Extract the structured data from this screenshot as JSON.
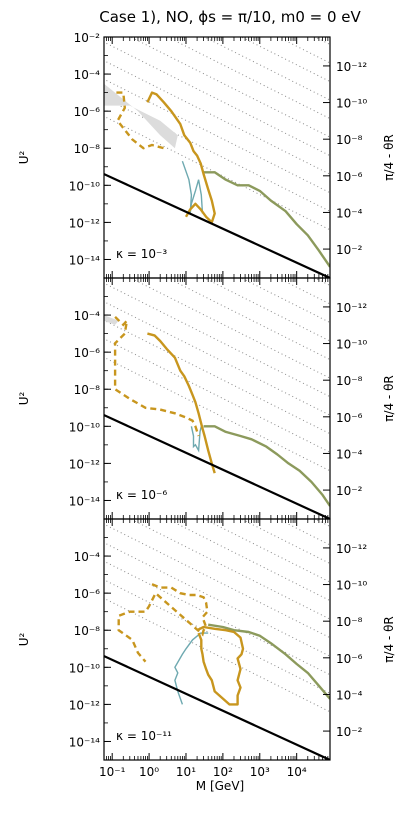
{
  "figure": {
    "title": "Case 1), NO, ϕs = π/10, m0 = 0 eV",
    "xlabel": "M [GeV]",
    "ylabel": "U²",
    "ylabel_right": "π/4 - θR"
  },
  "chart_data": [
    {
      "type": "line",
      "panel": "top",
      "annotation": "κ = 10⁻³",
      "xscale": "log",
      "yscale": "log",
      "xlim": [
        0.06,
        80000
      ],
      "ylim": [
        1e-15,
        0.01
      ],
      "x_ticks": [
        "10⁻¹",
        "10⁰",
        "10¹",
        "10²",
        "10³",
        "10⁴"
      ],
      "y_ticks": [
        "10⁻²",
        "10⁻⁴",
        "10⁻⁶",
        "10⁻⁸",
        "10⁻¹⁰",
        "10⁻¹²",
        "10⁻¹⁴"
      ],
      "y_ticks_right": [
        "10⁻¹²",
        "10⁻¹⁰",
        "10⁻⁸",
        "10⁻⁶",
        "10⁻⁴",
        "10⁻²"
      ],
      "colors": {
        "gold": "#c8961e",
        "teal": "#6ea9b0",
        "olive": "#8c9a5c",
        "shade": "#dcdcdc",
        "seesaw": "#000000"
      },
      "series": [
        {
          "style": "seesaw",
          "points": [
            [
              0.06,
              4e-10
            ],
            [
              80000,
              1e-15
            ]
          ]
        },
        {
          "style": "gold-solid",
          "points": [
            [
              0.9,
              3e-06
            ],
            [
              1.2,
              1e-05
            ],
            [
              1.6,
              8e-06
            ],
            [
              2.5,
              3e-06
            ],
            [
              4,
              1e-06
            ],
            [
              7,
              2e-07
            ],
            [
              9,
              5e-08
            ],
            [
              13,
              2e-08
            ],
            [
              16,
              7e-09
            ],
            [
              20,
              4e-09
            ],
            [
              25,
              1.5e-09
            ],
            [
              30,
              4e-10
            ],
            [
              40,
              6e-11
            ],
            [
              50,
              1.5e-11
            ],
            [
              60,
              3e-12
            ],
            [
              50,
              1e-12
            ],
            [
              35,
              2e-12
            ],
            [
              25,
              5e-12
            ],
            [
              18,
              1e-11
            ],
            [
              13,
              5e-12
            ],
            [
              10,
              2e-12
            ]
          ]
        },
        {
          "style": "gold-dashed",
          "points": [
            [
              0.13,
              1e-05
            ],
            [
              0.2,
              1e-05
            ],
            [
              0.22,
              1.5e-06
            ],
            [
              0.14,
              3e-07
            ],
            [
              0.35,
              3e-08
            ],
            [
              0.7,
              1e-08
            ],
            [
              1.2,
              1.5e-08
            ],
            [
              2.5,
              1e-08
            ]
          ]
        },
        {
          "style": "teal",
          "points": [
            [
              8,
              2e-09
            ],
            [
              12,
              2e-10
            ],
            [
              14,
              3e-11
            ],
            [
              13,
              3e-12
            ],
            [
              14,
              1e-11
            ],
            [
              18,
              5e-11
            ],
            [
              22,
              2e-10
            ],
            [
              26,
              3e-11
            ],
            [
              28,
              3e-12
            ]
          ]
        },
        {
          "style": "olive",
          "points": [
            [
              30,
              5e-10
            ],
            [
              60,
              5e-10
            ],
            [
              120,
              2e-10
            ],
            [
              250,
              1e-10
            ],
            [
              500,
              1e-10
            ],
            [
              1000,
              5e-11
            ],
            [
              2000,
              1.5e-11
            ],
            [
              5000,
              4e-12
            ],
            [
              10000,
              8e-13
            ],
            [
              20000,
              2e-13
            ],
            [
              40000,
              3e-14
            ],
            [
              80000,
              4e-15
            ]
          ]
        },
        {
          "style": "shade",
          "points": [
            [
              0.06,
              3e-05
            ],
            [
              0.5,
              1e-06
            ],
            [
              2,
              5e-08
            ],
            [
              5,
              1e-08
            ],
            [
              6,
              5e-08
            ],
            [
              2,
              3e-07
            ],
            [
              0.3,
              2e-06
            ],
            [
              0.06,
              2e-06
            ]
          ]
        }
      ]
    },
    {
      "type": "line",
      "panel": "middle",
      "annotation": "κ = 10⁻⁶",
      "xscale": "log",
      "yscale": "log",
      "xlim": [
        0.06,
        80000
      ],
      "ylim": [
        1e-15,
        0.01
      ],
      "x_ticks": [
        "10⁻¹",
        "10⁰",
        "10¹",
        "10²",
        "10³",
        "10⁴"
      ],
      "y_ticks": [
        "10⁻²",
        "10⁻⁴",
        "10⁻⁶",
        "10⁻⁸",
        "10⁻¹⁰",
        "10⁻¹²",
        "10⁻¹⁴"
      ],
      "y_ticks_right": [
        "10⁻¹²",
        "10⁻¹⁰",
        "10⁻⁸",
        "10⁻⁶",
        "10⁻⁴",
        "10⁻²"
      ],
      "colors": {
        "gold": "#c8961e",
        "teal": "#6ea9b0",
        "olive": "#8c9a5c",
        "shade": "#dcdcdc",
        "seesaw": "#000000"
      },
      "series": [
        {
          "style": "seesaw",
          "points": [
            [
              0.06,
              4e-10
            ],
            [
              80000,
              1e-15
            ]
          ]
        },
        {
          "style": "gold-solid",
          "points": [
            [
              0.9,
              1e-05
            ],
            [
              1.4,
              8e-06
            ],
            [
              2,
              4e-06
            ],
            [
              3,
              1.5e-06
            ],
            [
              5,
              5e-07
            ],
            [
              7,
              1e-07
            ],
            [
              9,
              5e-08
            ],
            [
              12,
              1.5e-08
            ],
            [
              15,
              5e-09
            ],
            [
              18,
              2e-09
            ],
            [
              22,
              5e-10
            ],
            [
              27,
              1e-10
            ],
            [
              32,
              3e-11
            ],
            [
              40,
              5e-12
            ],
            [
              50,
              1e-12
            ],
            [
              60,
              3e-13
            ]
          ]
        },
        {
          "style": "gold-dashed",
          "points": [
            [
              0.12,
              8e-05
            ],
            [
              0.2,
              3e-05
            ],
            [
              0.25,
              5e-05
            ],
            [
              0.22,
              1e-05
            ],
            [
              0.12,
              3e-06
            ],
            [
              0.12,
              1e-08
            ],
            [
              0.3,
              3e-09
            ],
            [
              0.8,
              1e-09
            ],
            [
              2,
              8e-10
            ],
            [
              5,
              5e-10
            ],
            [
              10,
              3e-10
            ],
            [
              15,
              2e-10
            ],
            [
              18,
              1e-10
            ],
            [
              22,
              3e-11
            ]
          ]
        },
        {
          "style": "teal",
          "points": [
            [
              14,
              1e-10
            ],
            [
              16,
              3e-11
            ],
            [
              16,
              8e-12
            ],
            [
              18,
              1e-11
            ],
            [
              22,
              5e-12
            ],
            [
              24,
              5e-11
            ],
            [
              26,
              1e-10
            ]
          ]
        },
        {
          "style": "olive",
          "points": [
            [
              30,
              1e-10
            ],
            [
              60,
              1e-10
            ],
            [
              120,
              5e-11
            ],
            [
              300,
              3e-11
            ],
            [
              600,
              2e-11
            ],
            [
              1500,
              8e-12
            ],
            [
              3000,
              3e-12
            ],
            [
              6000,
              1e-12
            ],
            [
              12000,
              4e-13
            ],
            [
              25000,
              1e-13
            ],
            [
              50000,
              2e-14
            ],
            [
              80000,
              5e-15
            ]
          ]
        },
        {
          "style": "shade",
          "points": [
            [
              0.06,
              0.0001
            ],
            [
              0.15,
              5e-05
            ],
            [
              0.12,
              3e-05
            ],
            [
              0.06,
              5e-05
            ]
          ]
        }
      ]
    },
    {
      "type": "line",
      "panel": "bottom",
      "annotation": "κ = 10⁻¹¹",
      "xscale": "log",
      "yscale": "log",
      "xlim": [
        0.06,
        80000
      ],
      "ylim": [
        1e-15,
        0.01
      ],
      "x_ticks": [
        "10⁻¹",
        "10⁰",
        "10¹",
        "10²",
        "10³",
        "10⁴"
      ],
      "y_ticks": [
        "10⁻²",
        "10⁻⁴",
        "10⁻⁶",
        "10⁻⁸",
        "10⁻¹⁰",
        "10⁻¹²",
        "10⁻¹⁴"
      ],
      "y_ticks_right": [
        "10⁻¹²",
        "10⁻¹⁰",
        "10⁻⁸",
        "10⁻⁶",
        "10⁻⁴",
        "10⁻²"
      ],
      "colors": {
        "gold": "#c8961e",
        "teal": "#6ea9b0",
        "olive": "#8c9a5c",
        "shade": "#dcdcdc",
        "seesaw": "#000000"
      },
      "series": [
        {
          "style": "seesaw",
          "points": [
            [
              0.06,
              4e-10
            ],
            [
              80000,
              1e-15
            ]
          ]
        },
        {
          "style": "gold-solid",
          "points": [
            [
              20,
              1e-08
            ],
            [
              30,
              1.5e-08
            ],
            [
              60,
              1.2e-08
            ],
            [
              120,
              1e-08
            ],
            [
              200,
              8e-09
            ],
            [
              300,
              4e-09
            ],
            [
              350,
              1e-09
            ],
            [
              320,
              5e-10
            ],
            [
              250,
              3e-10
            ],
            [
              300,
              8e-11
            ],
            [
              250,
              2e-11
            ],
            [
              300,
              8e-12
            ],
            [
              250,
              3e-12
            ],
            [
              250,
              1e-12
            ],
            [
              150,
              1e-12
            ],
            [
              60,
              5e-12
            ],
            [
              50,
              2e-11
            ],
            [
              40,
              4e-11
            ],
            [
              35,
              8e-11
            ],
            [
              30,
              2e-10
            ],
            [
              28,
              5e-10
            ],
            [
              26,
              1e-09
            ],
            [
              26,
              3e-09
            ],
            [
              22,
              7e-09
            ]
          ]
        },
        {
          "style": "gold-dashed",
          "points": [
            [
              1.2,
              3e-06
            ],
            [
              2,
              2e-06
            ],
            [
              4,
              2e-06
            ],
            [
              7,
              1e-06
            ],
            [
              12,
              8e-07
            ],
            [
              20,
              8e-07
            ],
            [
              30,
              6e-07
            ],
            [
              35,
              3e-07
            ],
            [
              38,
              1e-07
            ],
            [
              28,
              5e-08
            ],
            [
              35,
              1.5e-08
            ],
            [
              30,
              1e-08
            ],
            [
              28,
              6e-09
            ],
            [
              1.5,
              1e-06
            ],
            [
              1,
              2e-07
            ],
            [
              0.8,
              1e-07
            ],
            [
              0.3,
              1e-07
            ],
            [
              0.15,
              6e-08
            ],
            [
              0.15,
              1e-08
            ],
            [
              0.35,
              3e-09
            ],
            [
              0.5,
              6e-10
            ],
            [
              0.8,
              2e-10
            ]
          ]
        },
        {
          "style": "teal",
          "points": [
            [
              40,
              7e-09
            ],
            [
              25,
              7e-09
            ],
            [
              15,
              3e-09
            ],
            [
              10,
              1e-09
            ],
            [
              8,
              5e-10
            ],
            [
              5,
              1e-10
            ],
            [
              6,
              5e-11
            ],
            [
              5,
              2e-11
            ],
            [
              6,
              5e-12
            ],
            [
              8,
              1e-12
            ]
          ]
        },
        {
          "style": "olive",
          "points": [
            [
              40,
              2e-08
            ],
            [
              100,
              1.5e-08
            ],
            [
              200,
              1e-08
            ],
            [
              500,
              8e-09
            ],
            [
              1000,
              5e-09
            ],
            [
              2000,
              2e-09
            ],
            [
              5000,
              5e-10
            ],
            [
              10000,
              1.5e-10
            ],
            [
              20000,
              5e-11
            ],
            [
              40000,
              1e-11
            ],
            [
              80000,
              2e-12
            ]
          ]
        }
      ]
    }
  ]
}
